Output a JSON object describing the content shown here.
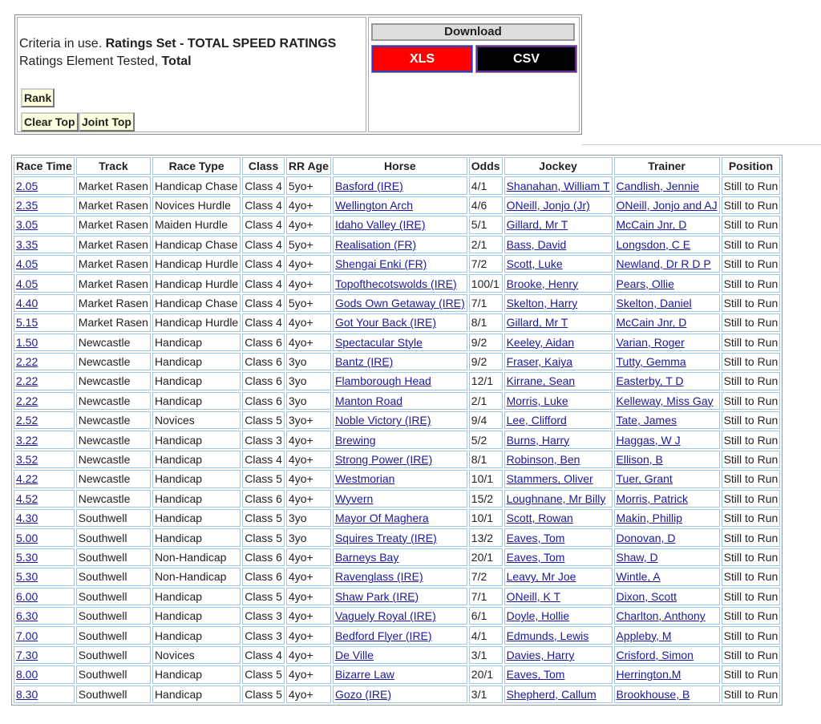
{
  "criteria": {
    "line1_label": "Criteria in use.",
    "line1_value": "Ratings Set - TOTAL SPEED RATINGS",
    "line2_label": "Ratings Element Tested,",
    "line2_value": "Total"
  },
  "buttons": [
    "Rank",
    "Clear Top",
    "Joint Top"
  ],
  "download": {
    "title": "Download",
    "xls": "XLS",
    "csv": "CSV"
  },
  "table": {
    "headers": [
      "Race Time",
      "Track",
      "Race Type",
      "Class",
      "RR Age",
      "Horse",
      "Odds",
      "Jockey",
      "Trainer",
      "Position"
    ],
    "rows": [
      [
        "2.05",
        "Market Rasen",
        "Handicap Chase",
        "Class 4",
        "5yo+",
        "Basford (IRE)",
        "4/1",
        "Shanahan, William T",
        "Candlish, Jennie",
        "Still to Run"
      ],
      [
        "2.35",
        "Market Rasen",
        "Novices Hurdle",
        "Class 4",
        "4yo+",
        "Wellington Arch",
        "4/6",
        "ONeill, Jonjo (Jr)",
        "ONeill, Jonjo and AJ",
        "Still to Run"
      ],
      [
        "3.05",
        "Market Rasen",
        "Maiden Hurdle",
        "Class 4",
        "4yo+",
        "Idaho Valley (IRE)",
        "5/1",
        "Gillard, Mr T",
        "McCain Jnr, D",
        "Still to Run"
      ],
      [
        "3.35",
        "Market Rasen",
        "Handicap Chase",
        "Class 4",
        "5yo+",
        "Realisation (FR)",
        "2/1",
        "Bass, David",
        "Longsdon, C E",
        "Still to Run"
      ],
      [
        "4.05",
        "Market Rasen",
        "Handicap Hurdle",
        "Class 4",
        "4yo+",
        "Shengai Enki (FR)",
        "7/2",
        "Scott, Luke",
        "Newland, Dr R D P",
        "Still to Run"
      ],
      [
        "4.05",
        "Market Rasen",
        "Handicap Hurdle",
        "Class 4",
        "4yo+",
        "Topofthecotswolds (IRE)",
        "100/1",
        "Brooke, Henry",
        "Pears, Ollie",
        "Still to Run"
      ],
      [
        "4.40",
        "Market Rasen",
        "Handicap Chase",
        "Class 4",
        "5yo+",
        "Gods Own Getaway (IRE)",
        "7/1",
        "Skelton, Harry",
        "Skelton, Daniel",
        "Still to Run"
      ],
      [
        "5.15",
        "Market Rasen",
        "Handicap Hurdle",
        "Class 4",
        "4yo+",
        "Got Your Back (IRE)",
        "8/1",
        "Gillard, Mr T",
        "McCain Jnr, D",
        "Still to Run"
      ],
      [
        "1.50",
        "Newcastle",
        "Handicap",
        "Class 6",
        "4yo+",
        "Spectacular Style",
        "9/2",
        "Keeley, Aidan",
        "Varian, Roger",
        "Still to Run"
      ],
      [
        "2.22",
        "Newcastle",
        "Handicap",
        "Class 6",
        "3yo",
        "Bantz (IRE)",
        "9/2",
        "Fraser, Kaiya",
        "Tutty, Gemma",
        "Still to Run"
      ],
      [
        "2.22",
        "Newcastle",
        "Handicap",
        "Class 6",
        "3yo",
        "Flamborough Head",
        "12/1",
        "Kirrane, Sean",
        "Easterby, T D",
        "Still to Run"
      ],
      [
        "2.22",
        "Newcastle",
        "Handicap",
        "Class 6",
        "3yo",
        "Manton Road",
        "2/1",
        "Morris, Luke",
        "Kelleway, Miss Gay",
        "Still to Run"
      ],
      [
        "2.52",
        "Newcastle",
        "Novices",
        "Class 5",
        "3yo+",
        "Noble Victory (IRE)",
        "9/4",
        "Lee, Clifford",
        "Tate, James",
        "Still to Run"
      ],
      [
        "3.22",
        "Newcastle",
        "Handicap",
        "Class 3",
        "4yo+",
        "Brewing",
        "5/2",
        "Burns, Harry",
        "Haggas, W J",
        "Still to Run"
      ],
      [
        "3.52",
        "Newcastle",
        "Handicap",
        "Class 4",
        "4yo+",
        "Strong Power (IRE)",
        "8/1",
        "Robinson, Ben",
        "Ellison, B",
        "Still to Run"
      ],
      [
        "4.22",
        "Newcastle",
        "Handicap",
        "Class 5",
        "4yo+",
        "Westmorian",
        "10/1",
        "Stammers, Oliver",
        "Tuer, Grant",
        "Still to Run"
      ],
      [
        "4.52",
        "Newcastle",
        "Handicap",
        "Class 6",
        "4yo+",
        "Wyvern",
        "15/2",
        "Loughnane, Mr Billy",
        "Morris, Patrick",
        "Still to Run"
      ],
      [
        "4.30",
        "Southwell",
        "Handicap",
        "Class 5",
        "3yo",
        "Mayor Of Maghera",
        "10/1",
        "Scott, Rowan",
        "Makin, Phillip",
        "Still to Run"
      ],
      [
        "5.00",
        "Southwell",
        "Handicap",
        "Class 5",
        "3yo",
        "Squires Treaty (IRE)",
        "13/2",
        "Eaves, Tom",
        "Donovan, D",
        "Still to Run"
      ],
      [
        "5.30",
        "Southwell",
        "Non-Handicap",
        "Class 6",
        "4yo+",
        "Barneys Bay",
        "20/1",
        "Eaves, Tom",
        "Shaw, D",
        "Still to Run"
      ],
      [
        "5.30",
        "Southwell",
        "Non-Handicap",
        "Class 6",
        "4yo+",
        "Ravenglass (IRE)",
        "7/2",
        "Leavy, Mr Joe",
        "Wintle, A",
        "Still to Run"
      ],
      [
        "6.00",
        "Southwell",
        "Handicap",
        "Class 5",
        "4yo+",
        "Shaw Park (IRE)",
        "7/1",
        "ONeill, K T",
        "Dixon, Scott",
        "Still to Run"
      ],
      [
        "6.30",
        "Southwell",
        "Handicap",
        "Class 3",
        "4yo+",
        "Vaguely Royal (IRE)",
        "6/1",
        "Doyle, Hollie",
        "Charlton, Anthony",
        "Still to Run"
      ],
      [
        "7.00",
        "Southwell",
        "Handicap",
        "Class 3",
        "4yo+",
        "Bedford Flyer (IRE)",
        "4/1",
        "Edmunds, Lewis",
        "Appleby, M",
        "Still to Run"
      ],
      [
        "7.30",
        "Southwell",
        "Novices",
        "Class 4",
        "4yo+",
        "De Ville",
        "3/1",
        "Davies, Harry",
        "Crisford, Simon",
        "Still to Run"
      ],
      [
        "8.00",
        "Southwell",
        "Handicap",
        "Class 5",
        "4yo+",
        "Bizarre Law",
        "20/1",
        "Eaves, Tom",
        "Herrington,M",
        "Still to Run"
      ],
      [
        "8.30",
        "Southwell",
        "Handicap",
        "Class 5",
        "4yo+",
        "Gozo (IRE)",
        "3/1",
        "Shepherd, Callum",
        "Brookhouse, B",
        "Still to Run"
      ]
    ]
  }
}
